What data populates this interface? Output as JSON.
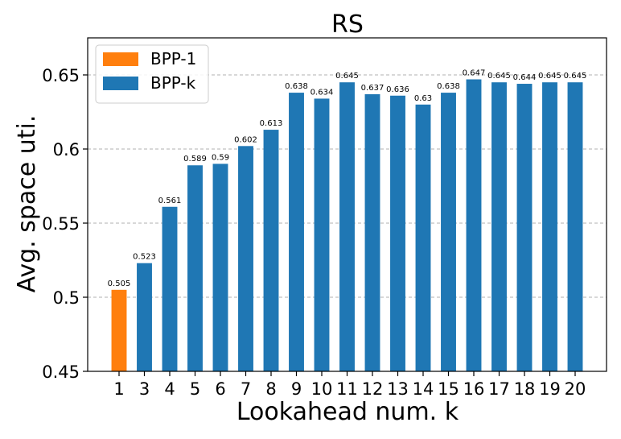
{
  "chart_data": {
    "type": "bar",
    "title": "RS",
    "xlabel": "Lookahead num. k",
    "ylabel": "Avg. space uti.",
    "ylim": [
      0.45,
      0.675
    ],
    "yticks": [
      0.45,
      0.5,
      0.55,
      0.6,
      0.65
    ],
    "ytick_labels": [
      "0.45",
      "0.5",
      "0.55",
      "0.6",
      "0.65"
    ],
    "grid": "y-dashed",
    "legend_position": "top-left",
    "categories": [
      "1",
      "3",
      "4",
      "5",
      "6",
      "7",
      "8",
      "9",
      "10",
      "11",
      "12",
      "13",
      "14",
      "15",
      "16",
      "17",
      "18",
      "19",
      "20"
    ],
    "series": [
      {
        "name": "BPP-1",
        "color": "#ff7f0e",
        "values": [
          0.505,
          null,
          null,
          null,
          null,
          null,
          null,
          null,
          null,
          null,
          null,
          null,
          null,
          null,
          null,
          null,
          null,
          null,
          null
        ],
        "labels": [
          "0.505",
          null,
          null,
          null,
          null,
          null,
          null,
          null,
          null,
          null,
          null,
          null,
          null,
          null,
          null,
          null,
          null,
          null,
          null
        ]
      },
      {
        "name": "BPP-k",
        "color": "#1f77b4",
        "values": [
          null,
          0.523,
          0.561,
          0.589,
          0.59,
          0.602,
          0.613,
          0.638,
          0.634,
          0.645,
          0.637,
          0.636,
          0.63,
          0.638,
          0.647,
          0.645,
          0.644,
          0.645,
          0.645
        ],
        "labels": [
          null,
          "0.523",
          "0.561",
          "0.589",
          "0.59",
          "0.602",
          "0.613",
          "0.638",
          "0.634",
          "0.645",
          "0.637",
          "0.636",
          "0.63",
          "0.638",
          "0.647",
          "0.645",
          "0.644",
          "0.645",
          "0.645"
        ]
      }
    ]
  }
}
